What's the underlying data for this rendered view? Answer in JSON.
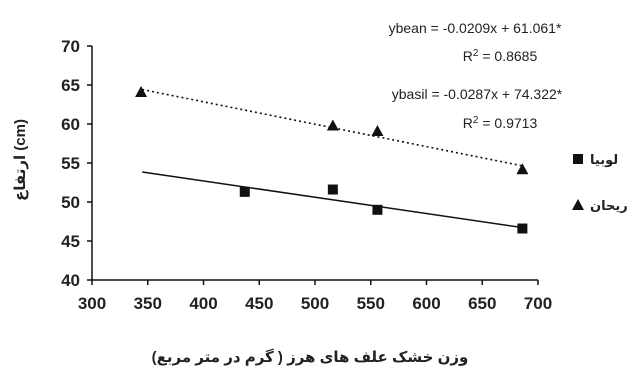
{
  "chart_data": {
    "type": "scatter",
    "xlabel": "وزن خشک علف های هرز ( گرم در متر مربع)",
    "ylabel": "ارتفاع (cm)",
    "xlim": [
      300,
      700
    ],
    "ylim": [
      40,
      70
    ],
    "x_ticks": [
      "300",
      "350",
      "400",
      "450",
      "500",
      "550",
      "600",
      "650",
      "700"
    ],
    "y_ticks": [
      "40",
      "45",
      "50",
      "55",
      "60",
      "65",
      "70"
    ],
    "grid": false,
    "legend_position": "right",
    "series": [
      {
        "name": "لوبیا",
        "marker": "square",
        "color": "#111111",
        "points": [
          [
            437,
            51.3
          ],
          [
            516,
            51.6
          ],
          [
            556,
            49.0
          ],
          [
            686,
            46.6
          ]
        ],
        "trend": {
          "slope": -0.0209,
          "intercept": 61.061,
          "x_range": [
            345,
            686
          ],
          "style": "solid"
        }
      },
      {
        "name": "ریحان",
        "marker": "triangle",
        "color": "#111111",
        "points": [
          [
            344,
            64.1
          ],
          [
            516,
            59.8
          ],
          [
            556,
            59.1
          ],
          [
            686,
            54.2
          ]
        ],
        "trend": {
          "slope": -0.0287,
          "intercept": 74.322,
          "x_range": [
            345,
            686
          ],
          "style": "dotted"
        }
      }
    ],
    "annotations": [
      {
        "line1": "ybean = -0.0209x + 61.061*",
        "r2_label": "R",
        "r2_exp": "2",
        "r2_value": " = 0.8685"
      },
      {
        "line1": "ybasil = -0.0287x + 74.322*",
        "r2_label": "R",
        "r2_exp": "2",
        "r2_value": " = 0.9713"
      }
    ]
  }
}
